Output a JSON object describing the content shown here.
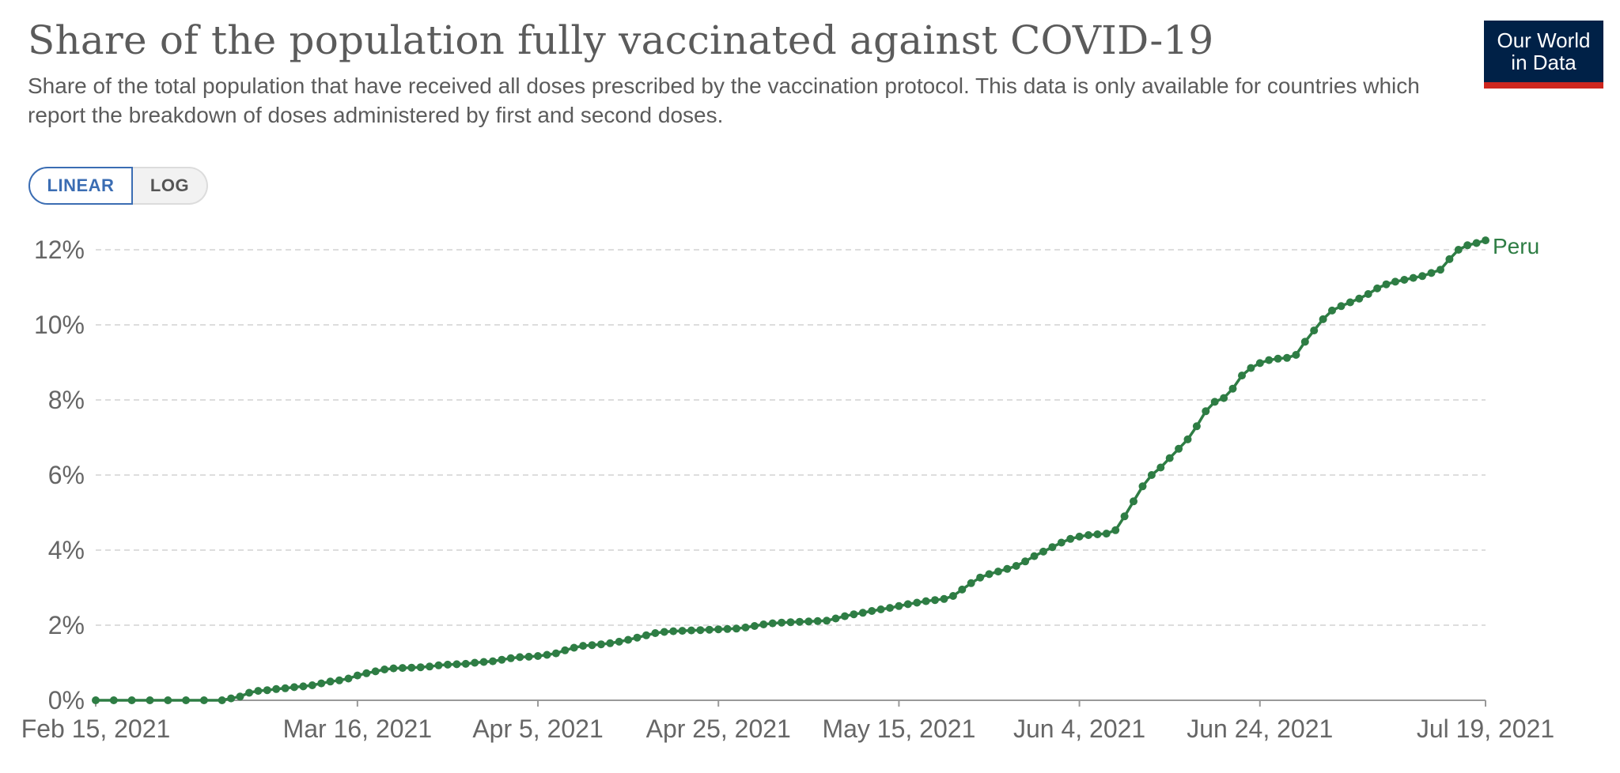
{
  "header": {
    "title": "Share of the population fully vaccinated against COVID-19",
    "subtitle": "Share of the total population that have received all doses prescribed by the vaccination protocol. This data is only available for countries which report the breakdown of doses administered by first and second doses.",
    "logo_line1": "Our World",
    "logo_line2": "in Data"
  },
  "controls": {
    "linear_label": "LINEAR",
    "log_label": "LOG",
    "selected": "LINEAR"
  },
  "colors": {
    "series": "#2e7d44",
    "grid": "#dddddd",
    "text": "#666666",
    "logo_bg": "#002147",
    "logo_accent": "#ce261e",
    "toggle_active": "#3b6db3"
  },
  "chart_data": {
    "type": "line",
    "title": "Share of the population fully vaccinated against COVID-19",
    "xlabel": "",
    "ylabel": "",
    "x_type": "date",
    "xlim": [
      "2021-02-15",
      "2021-07-19"
    ],
    "ylim": [
      0,
      12
    ],
    "y_ticks": [
      0,
      2,
      4,
      6,
      8,
      10,
      12
    ],
    "y_tick_labels": [
      "0%",
      "2%",
      "4%",
      "6%",
      "8%",
      "10%",
      "12%"
    ],
    "x_ticks": [
      "2021-02-15",
      "2021-03-16",
      "2021-04-05",
      "2021-04-25",
      "2021-05-15",
      "2021-06-04",
      "2021-06-24",
      "2021-07-19"
    ],
    "x_tick_labels": [
      "Feb 15, 2021",
      "Mar 16, 2021",
      "Apr 5, 2021",
      "Apr 25, 2021",
      "May 15, 2021",
      "Jun 4, 2021",
      "Jun 24, 2021",
      "Jul 19, 2021"
    ],
    "grid": true,
    "grid_style": "dashed-horizontal",
    "series": [
      {
        "name": "Peru",
        "color": "#2e7d44",
        "points": [
          [
            "2021-02-15",
            0.0
          ],
          [
            "2021-02-17",
            0.0
          ],
          [
            "2021-02-19",
            0.0
          ],
          [
            "2021-02-21",
            0.0
          ],
          [
            "2021-02-23",
            0.0
          ],
          [
            "2021-02-25",
            0.0
          ],
          [
            "2021-02-27",
            0.0
          ],
          [
            "2021-03-01",
            0.0
          ],
          [
            "2021-03-02",
            0.05
          ],
          [
            "2021-03-03",
            0.1
          ],
          [
            "2021-03-04",
            0.2
          ],
          [
            "2021-03-05",
            0.25
          ],
          [
            "2021-03-06",
            0.27
          ],
          [
            "2021-03-07",
            0.3
          ],
          [
            "2021-03-08",
            0.32
          ],
          [
            "2021-03-09",
            0.35
          ],
          [
            "2021-03-10",
            0.37
          ],
          [
            "2021-03-11",
            0.4
          ],
          [
            "2021-03-12",
            0.45
          ],
          [
            "2021-03-13",
            0.5
          ],
          [
            "2021-03-14",
            0.53
          ],
          [
            "2021-03-15",
            0.58
          ],
          [
            "2021-03-16",
            0.66
          ],
          [
            "2021-03-17",
            0.72
          ],
          [
            "2021-03-18",
            0.77
          ],
          [
            "2021-03-19",
            0.82
          ],
          [
            "2021-03-20",
            0.85
          ],
          [
            "2021-03-21",
            0.86
          ],
          [
            "2021-03-22",
            0.87
          ],
          [
            "2021-03-23",
            0.88
          ],
          [
            "2021-03-24",
            0.9
          ],
          [
            "2021-03-25",
            0.93
          ],
          [
            "2021-03-26",
            0.95
          ],
          [
            "2021-03-27",
            0.96
          ],
          [
            "2021-03-28",
            0.97
          ],
          [
            "2021-03-29",
            1.0
          ],
          [
            "2021-03-30",
            1.02
          ],
          [
            "2021-03-31",
            1.04
          ],
          [
            "2021-04-01",
            1.08
          ],
          [
            "2021-04-02",
            1.12
          ],
          [
            "2021-04-03",
            1.15
          ],
          [
            "2021-04-04",
            1.16
          ],
          [
            "2021-04-05",
            1.18
          ],
          [
            "2021-04-06",
            1.21
          ],
          [
            "2021-04-07",
            1.25
          ],
          [
            "2021-04-08",
            1.33
          ],
          [
            "2021-04-09",
            1.4
          ],
          [
            "2021-04-10",
            1.45
          ],
          [
            "2021-04-11",
            1.47
          ],
          [
            "2021-04-12",
            1.49
          ],
          [
            "2021-04-13",
            1.52
          ],
          [
            "2021-04-14",
            1.56
          ],
          [
            "2021-04-15",
            1.61
          ],
          [
            "2021-04-16",
            1.67
          ],
          [
            "2021-04-17",
            1.73
          ],
          [
            "2021-04-18",
            1.79
          ],
          [
            "2021-04-19",
            1.82
          ],
          [
            "2021-04-20",
            1.84
          ],
          [
            "2021-04-21",
            1.85
          ],
          [
            "2021-04-22",
            1.86
          ],
          [
            "2021-04-23",
            1.87
          ],
          [
            "2021-04-24",
            1.88
          ],
          [
            "2021-04-25",
            1.89
          ],
          [
            "2021-04-26",
            1.9
          ],
          [
            "2021-04-27",
            1.91
          ],
          [
            "2021-04-28",
            1.94
          ],
          [
            "2021-04-29",
            1.98
          ],
          [
            "2021-04-30",
            2.02
          ],
          [
            "2021-05-01",
            2.05
          ],
          [
            "2021-05-02",
            2.07
          ],
          [
            "2021-05-03",
            2.08
          ],
          [
            "2021-05-04",
            2.09
          ],
          [
            "2021-05-05",
            2.1
          ],
          [
            "2021-05-06",
            2.11
          ],
          [
            "2021-05-07",
            2.12
          ],
          [
            "2021-05-08",
            2.18
          ],
          [
            "2021-05-09",
            2.24
          ],
          [
            "2021-05-10",
            2.29
          ],
          [
            "2021-05-11",
            2.33
          ],
          [
            "2021-05-12",
            2.38
          ],
          [
            "2021-05-13",
            2.42
          ],
          [
            "2021-05-14",
            2.46
          ],
          [
            "2021-05-15",
            2.51
          ],
          [
            "2021-05-16",
            2.56
          ],
          [
            "2021-05-17",
            2.6
          ],
          [
            "2021-05-18",
            2.64
          ],
          [
            "2021-05-19",
            2.67
          ],
          [
            "2021-05-20",
            2.7
          ],
          [
            "2021-05-21",
            2.78
          ],
          [
            "2021-05-22",
            2.95
          ],
          [
            "2021-05-23",
            3.12
          ],
          [
            "2021-05-24",
            3.27
          ],
          [
            "2021-05-25",
            3.36
          ],
          [
            "2021-05-26",
            3.43
          ],
          [
            "2021-05-27",
            3.5
          ],
          [
            "2021-05-28",
            3.58
          ],
          [
            "2021-05-29",
            3.7
          ],
          [
            "2021-05-30",
            3.84
          ],
          [
            "2021-05-31",
            3.96
          ],
          [
            "2021-06-01",
            4.08
          ],
          [
            "2021-06-02",
            4.2
          ],
          [
            "2021-06-03",
            4.3
          ],
          [
            "2021-06-04",
            4.36
          ],
          [
            "2021-06-05",
            4.4
          ],
          [
            "2021-06-06",
            4.42
          ],
          [
            "2021-06-07",
            4.44
          ],
          [
            "2021-06-08",
            4.53
          ],
          [
            "2021-06-09",
            4.9
          ],
          [
            "2021-06-10",
            5.3
          ],
          [
            "2021-06-11",
            5.7
          ],
          [
            "2021-06-12",
            6.0
          ],
          [
            "2021-06-13",
            6.2
          ],
          [
            "2021-06-14",
            6.45
          ],
          [
            "2021-06-15",
            6.7
          ],
          [
            "2021-06-16",
            6.95
          ],
          [
            "2021-06-17",
            7.3
          ],
          [
            "2021-06-18",
            7.7
          ],
          [
            "2021-06-19",
            7.95
          ],
          [
            "2021-06-20",
            8.05
          ],
          [
            "2021-06-21",
            8.3
          ],
          [
            "2021-06-22",
            8.65
          ],
          [
            "2021-06-23",
            8.85
          ],
          [
            "2021-06-24",
            8.98
          ],
          [
            "2021-06-25",
            9.06
          ],
          [
            "2021-06-26",
            9.1
          ],
          [
            "2021-06-27",
            9.12
          ],
          [
            "2021-06-28",
            9.2
          ],
          [
            "2021-06-29",
            9.55
          ],
          [
            "2021-06-30",
            9.85
          ],
          [
            "2021-07-01",
            10.15
          ],
          [
            "2021-07-02",
            10.38
          ],
          [
            "2021-07-03",
            10.5
          ],
          [
            "2021-07-04",
            10.6
          ],
          [
            "2021-07-05",
            10.7
          ],
          [
            "2021-07-06",
            10.82
          ],
          [
            "2021-07-07",
            10.97
          ],
          [
            "2021-07-08",
            11.08
          ],
          [
            "2021-07-09",
            11.15
          ],
          [
            "2021-07-10",
            11.2
          ],
          [
            "2021-07-11",
            11.25
          ],
          [
            "2021-07-12",
            11.3
          ],
          [
            "2021-07-13",
            11.38
          ],
          [
            "2021-07-14",
            11.47
          ],
          [
            "2021-07-15",
            11.75
          ],
          [
            "2021-07-16",
            12.0
          ],
          [
            "2021-07-17",
            12.12
          ],
          [
            "2021-07-18",
            12.18
          ],
          [
            "2021-07-19",
            12.25
          ]
        ]
      }
    ]
  }
}
